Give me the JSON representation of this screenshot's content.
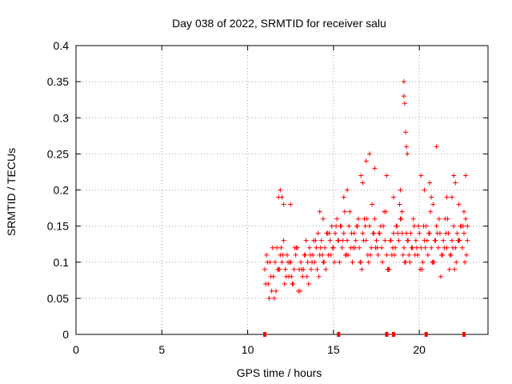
{
  "chart_data": {
    "type": "scatter",
    "title": "Day 038 of 2022, SRMTID for receiver salu",
    "xlabel": "GPS time / hours",
    "ylabel": "SRMTID / TECUs",
    "xlim": [
      0,
      24
    ],
    "ylim": [
      0,
      0.4
    ],
    "x_ticks": [
      0,
      5,
      10,
      15,
      20
    ],
    "y_ticks": [
      0,
      0.05,
      0.1,
      0.15,
      0.2,
      0.25,
      0.3,
      0.35,
      0.4
    ],
    "x_tick_labels": [
      "0",
      "5",
      "10",
      "15",
      "20"
    ],
    "y_tick_labels": [
      "0",
      "0.05",
      "0.1",
      "0.15",
      "0.2",
      "0.25",
      "0.3",
      "0.35",
      "0.4"
    ],
    "grid": true,
    "marker": "plus",
    "marker_color": "#ff0000",
    "series": [
      {
        "name": "SRMTID",
        "x": [
          11.0,
          11.1,
          11.2,
          11.3,
          11.4,
          11.5,
          11.6,
          11.7,
          11.8,
          11.9,
          12.0,
          12.1,
          12.2,
          12.3,
          12.4,
          12.5,
          12.6,
          12.7,
          12.8,
          12.9,
          13.0,
          13.1,
          13.2,
          13.3,
          13.4,
          13.5,
          13.6,
          13.7,
          13.8,
          13.9,
          14.0,
          14.1,
          14.2,
          14.3,
          14.4,
          14.5,
          14.6,
          14.7,
          14.8,
          14.9,
          15.0,
          15.1,
          15.2,
          15.3,
          15.4,
          15.5,
          15.6,
          15.7,
          15.8,
          15.9,
          16.0,
          16.1,
          16.2,
          16.3,
          16.4,
          16.5,
          16.6,
          16.7,
          16.8,
          16.9,
          17.0,
          17.1,
          17.2,
          17.3,
          17.4,
          17.5,
          17.6,
          17.7,
          17.8,
          17.9,
          18.0,
          18.1,
          18.2,
          18.3,
          18.4,
          18.5,
          18.6,
          18.7,
          18.8,
          18.9,
          19.0,
          19.1,
          19.2,
          19.3,
          19.4,
          19.5,
          19.6,
          19.7,
          19.8,
          19.9,
          20.0,
          20.1,
          20.2,
          20.3,
          20.4,
          20.5,
          20.6,
          20.7,
          20.8,
          20.9,
          21.0,
          21.1,
          21.2,
          21.3,
          21.4,
          21.5,
          21.6,
          21.7,
          21.8,
          21.9,
          22.0,
          22.1,
          22.2,
          22.3,
          22.4,
          22.5,
          22.6,
          22.7,
          22.8,
          11.05,
          11.25,
          11.45,
          11.65,
          11.85,
          12.05,
          12.25,
          12.45,
          12.65,
          12.85,
          13.05,
          13.25,
          13.45,
          13.65,
          13.85,
          14.05,
          14.25,
          14.45,
          14.65,
          14.85,
          15.05,
          15.25,
          15.45,
          15.65,
          15.85,
          16.05,
          16.25,
          16.45,
          16.65,
          16.85,
          17.05,
          17.25,
          17.45,
          17.65,
          17.85,
          18.05,
          18.25,
          18.45,
          18.65,
          18.85,
          19.05,
          19.25,
          19.45,
          19.65,
          19.85,
          20.05,
          20.25,
          20.45,
          20.65,
          20.85,
          21.05,
          21.25,
          21.45,
          21.65,
          21.85,
          22.05,
          22.25,
          22.45,
          22.65,
          11.15,
          11.35,
          11.55,
          11.75,
          11.95,
          12.15,
          12.35,
          12.55,
          12.75,
          12.95,
          13.15,
          13.35,
          13.55,
          13.75,
          13.95,
          14.15,
          14.35,
          14.55,
          14.75,
          14.95,
          15.15,
          15.35,
          15.55,
          15.75,
          15.95,
          16.15,
          16.35,
          16.55,
          16.75,
          16.95,
          17.15,
          17.35,
          17.55,
          17.75,
          17.95,
          18.15,
          18.35,
          18.55,
          18.75,
          18.95,
          19.15,
          19.35,
          19.55,
          19.75,
          19.95,
          20.15,
          20.35,
          20.55,
          20.75,
          20.95,
          21.15,
          21.35,
          21.55,
          21.75,
          21.95,
          22.15,
          22.35,
          22.55,
          22.75,
          11.8,
          11.9,
          12.0,
          12.1,
          12.5,
          14.2,
          14.4,
          15.6,
          15.8,
          16.6,
          16.7,
          16.9,
          17.1,
          17.4,
          18.1,
          18.5,
          18.9,
          19.0,
          19.1,
          19.1,
          19.15,
          19.2,
          19.25,
          19.3,
          20.1,
          20.3,
          20.6,
          20.7,
          20.8,
          21.0,
          21.6,
          21.9,
          22.0,
          22.1,
          22.3,
          22.6,
          22.7,
          22.8
        ],
        "y": [
          0.09,
          0.11,
          0.07,
          0.1,
          0.06,
          0.08,
          0.1,
          0.12,
          0.09,
          0.11,
          0.1,
          0.13,
          0.09,
          0.11,
          0.08,
          0.1,
          0.07,
          0.09,
          0.11,
          0.12,
          0.09,
          0.1,
          0.08,
          0.11,
          0.13,
          0.1,
          0.12,
          0.09,
          0.11,
          0.1,
          0.12,
          0.14,
          0.11,
          0.13,
          0.1,
          0.12,
          0.14,
          0.11,
          0.13,
          0.15,
          0.12,
          0.14,
          0.16,
          0.13,
          0.15,
          0.12,
          0.14,
          0.11,
          0.13,
          0.15,
          0.12,
          0.1,
          0.14,
          0.13,
          0.15,
          0.12,
          0.1,
          0.14,
          0.16,
          0.13,
          0.11,
          0.15,
          0.12,
          0.14,
          0.16,
          0.13,
          0.11,
          0.14,
          0.12,
          0.15,
          0.13,
          0.11,
          0.09,
          0.13,
          0.11,
          0.14,
          0.12,
          0.15,
          0.13,
          0.16,
          0.14,
          0.12,
          0.1,
          0.13,
          0.11,
          0.14,
          0.12,
          0.15,
          0.13,
          0.11,
          0.14,
          0.12,
          0.1,
          0.13,
          0.15,
          0.11,
          0.14,
          0.12,
          0.1,
          0.13,
          0.15,
          0.12,
          0.14,
          0.11,
          0.13,
          0.16,
          0.12,
          0.14,
          0.11,
          0.13,
          0.15,
          0.12,
          0.14,
          0.13,
          0.15,
          0.12,
          0.14,
          0.16,
          0.13,
          0.07,
          0.05,
          0.12,
          0.06,
          0.09,
          0.11,
          0.08,
          0.1,
          0.07,
          0.12,
          0.06,
          0.09,
          0.08,
          0.11,
          0.13,
          0.09,
          0.12,
          0.1,
          0.14,
          0.11,
          0.1,
          0.13,
          0.15,
          0.17,
          0.11,
          0.14,
          0.12,
          0.16,
          0.09,
          0.15,
          0.1,
          0.18,
          0.12,
          0.14,
          0.1,
          0.17,
          0.09,
          0.12,
          0.15,
          0.18,
          0.11,
          0.14,
          0.1,
          0.16,
          0.12,
          0.09,
          0.15,
          0.13,
          0.17,
          0.1,
          0.14,
          0.08,
          0.12,
          0.16,
          0.11,
          0.09,
          0.13,
          0.15,
          0.1,
          0.1,
          0.08,
          0.05,
          0.09,
          0.12,
          0.07,
          0.1,
          0.08,
          0.12,
          0.06,
          0.09,
          0.11,
          0.07,
          0.1,
          0.13,
          0.08,
          0.11,
          0.09,
          0.14,
          0.12,
          0.15,
          0.1,
          0.13,
          0.11,
          0.17,
          0.12,
          0.15,
          0.1,
          0.13,
          0.16,
          0.11,
          0.14,
          0.12,
          0.15,
          0.17,
          0.09,
          0.13,
          0.11,
          0.14,
          0.16,
          0.1,
          0.13,
          0.12,
          0.11,
          0.15,
          0.09,
          0.12,
          0.14,
          0.1,
          0.13,
          0.16,
          0.11,
          0.14,
          0.09,
          0.12,
          0.1,
          0.13,
          0.15,
          0.11,
          0.19,
          0.2,
          0.19,
          0.18,
          0.18,
          0.17,
          0.16,
          0.19,
          0.2,
          0.22,
          0.21,
          0.24,
          0.25,
          0.23,
          0.22,
          0.19,
          0.2,
          0.17,
          0.35,
          0.33,
          0.32,
          0.28,
          0.26,
          0.25,
          0.22,
          0.2,
          0.21,
          0.19,
          0.18,
          0.26,
          0.19,
          0.19,
          0.22,
          0.21,
          0.18,
          0.17,
          0.22,
          0.15
        ]
      }
    ],
    "x_axis_rug": [
      11.0,
      15.3,
      18.1,
      18.5,
      20.4,
      22.6
    ],
    "x_axis_rug_y": 0
  }
}
